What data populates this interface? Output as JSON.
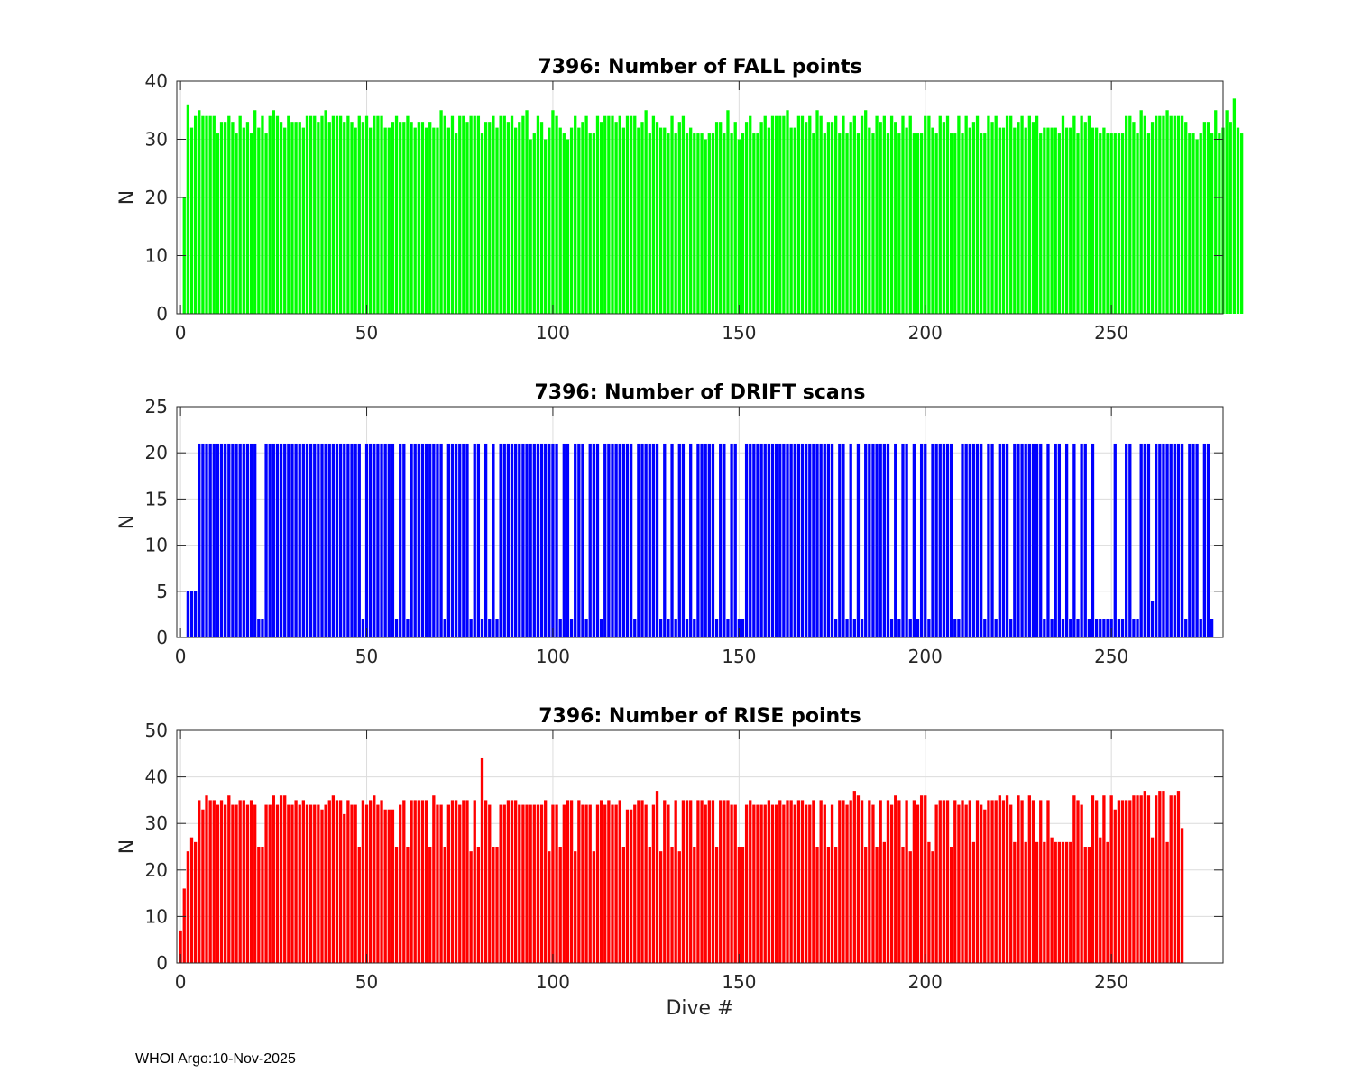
{
  "footer": "WHOI Argo:10-Nov-2025",
  "colors": {
    "fall": "#00ff00",
    "drift": "#0000ff",
    "rise": "#ff0000",
    "grid": "#dcdcdc",
    "axis": "#262626"
  },
  "chart_data": [
    {
      "type": "bar",
      "title": "7396: Number of FALL points",
      "xlabel": "",
      "ylabel": "N",
      "xlim": [
        -1,
        280
      ],
      "ylim": [
        0,
        40
      ],
      "xticks": [
        0,
        50,
        100,
        150,
        200,
        250
      ],
      "yticks": [
        0,
        10,
        20,
        30,
        40
      ],
      "x_start": 1,
      "values": [
        20,
        36,
        32,
        34,
        35,
        34,
        34,
        34,
        34,
        31,
        33,
        33,
        34,
        33,
        31,
        34,
        32,
        33,
        31,
        35,
        32,
        34,
        31,
        34,
        35,
        34,
        33,
        32,
        34,
        33,
        33,
        33,
        32,
        34,
        34,
        34,
        33,
        34,
        35,
        33,
        34,
        34,
        34,
        33,
        34,
        33,
        32,
        34,
        33,
        34,
        32,
        34,
        34,
        34,
        32,
        32,
        33,
        34,
        33,
        33,
        34,
        33,
        32,
        33,
        33,
        32,
        33,
        32,
        32,
        35,
        34,
        32,
        34,
        31,
        34,
        34,
        33,
        34,
        34,
        34,
        31,
        33,
        33,
        34,
        32,
        34,
        34,
        33,
        34,
        32,
        33,
        34,
        35,
        30,
        31,
        34,
        33,
        30,
        32,
        35,
        34,
        32,
        31,
        30,
        32,
        34,
        32,
        33,
        34,
        31,
        31,
        34,
        33,
        34,
        34,
        34,
        33,
        34,
        32,
        34,
        34,
        34,
        32,
        33,
        35,
        31,
        34,
        33,
        32,
        32,
        31,
        34,
        31,
        33,
        34,
        31,
        32,
        31,
        31,
        31,
        30,
        31,
        31,
        33,
        33,
        31,
        35,
        31,
        33,
        30,
        31,
        33,
        34,
        31,
        31,
        33,
        34,
        32,
        34,
        34,
        34,
        34,
        35,
        32,
        32,
        34,
        34,
        33,
        34,
        31,
        35,
        34,
        31,
        33,
        33,
        34,
        31,
        34,
        31,
        33,
        34,
        31,
        34,
        35,
        32,
        31,
        34,
        33,
        34,
        31,
        34,
        33,
        31,
        34,
        32,
        34,
        31,
        31,
        31,
        34,
        34,
        32,
        31,
        34,
        33,
        34,
        31,
        31,
        34,
        31,
        34,
        32,
        33,
        34,
        31,
        31,
        34,
        33,
        34,
        32,
        32,
        34,
        34,
        32,
        33,
        34,
        32,
        34,
        33,
        34,
        31,
        32,
        32,
        32,
        32,
        31,
        34,
        32,
        32,
        34,
        31,
        34,
        33,
        34,
        32,
        32,
        31,
        32,
        31,
        31,
        31,
        31,
        31,
        34,
        34,
        33,
        31,
        35,
        34,
        31,
        33,
        34,
        34,
        34,
        35,
        34,
        34,
        34,
        34,
        33,
        31,
        31,
        30,
        31,
        33,
        33,
        31,
        35,
        31,
        32,
        35,
        33,
        37,
        32,
        31
      ]
    },
    {
      "type": "bar",
      "title": "7396: Number of DRIFT scans",
      "xlabel": "",
      "ylabel": "N",
      "xlim": [
        -1,
        280
      ],
      "ylim": [
        0,
        25
      ],
      "xticks": [
        0,
        50,
        100,
        150,
        200,
        250
      ],
      "yticks": [
        0,
        5,
        10,
        15,
        20,
        25
      ],
      "x_start": 1,
      "values": [
        0,
        5,
        5,
        5,
        21,
        21,
        21,
        21,
        21,
        21,
        21,
        21,
        21,
        21,
        21,
        21,
        21,
        21,
        21,
        21,
        2,
        2,
        21,
        21,
        21,
        21,
        21,
        21,
        21,
        21,
        21,
        21,
        21,
        21,
        21,
        21,
        21,
        21,
        21,
        21,
        21,
        21,
        21,
        21,
        21,
        21,
        21,
        21,
        2,
        21,
        21,
        21,
        21,
        21,
        21,
        21,
        21,
        2,
        21,
        21,
        2,
        21,
        21,
        21,
        21,
        21,
        21,
        21,
        21,
        21,
        2,
        21,
        21,
        21,
        21,
        21,
        21,
        2,
        21,
        21,
        2,
        21,
        2,
        21,
        2,
        21,
        21,
        21,
        21,
        21,
        21,
        21,
        21,
        21,
        21,
        21,
        21,
        21,
        21,
        21,
        21,
        2,
        21,
        21,
        2,
        21,
        21,
        21,
        2,
        21,
        21,
        21,
        2,
        21,
        21,
        21,
        21,
        21,
        21,
        21,
        21,
        2,
        21,
        21,
        21,
        21,
        21,
        21,
        2,
        21,
        2,
        21,
        2,
        21,
        21,
        2,
        21,
        2,
        21,
        21,
        21,
        21,
        21,
        2,
        21,
        21,
        2,
        21,
        21,
        2,
        2,
        21,
        21,
        21,
        21,
        21,
        21,
        21,
        21,
        21,
        21,
        21,
        21,
        21,
        21,
        21,
        21,
        21,
        21,
        21,
        21,
        21,
        21,
        21,
        21,
        2,
        21,
        21,
        2,
        21,
        2,
        21,
        2,
        21,
        21,
        21,
        21,
        21,
        21,
        21,
        2,
        21,
        2,
        21,
        21,
        2,
        21,
        2,
        21,
        21,
        2,
        21,
        21,
        21,
        21,
        21,
        21,
        2,
        2,
        21,
        21,
        21,
        21,
        21,
        21,
        2,
        21,
        21,
        2,
        21,
        21,
        21,
        2,
        21,
        21,
        21,
        21,
        21,
        21,
        21,
        21,
        2,
        21,
        2,
        21,
        21,
        2,
        21,
        2,
        21,
        2,
        21,
        21,
        2,
        21,
        2,
        2,
        2,
        2,
        2,
        21,
        2,
        2,
        21,
        21,
        2,
        2,
        21,
        21,
        21,
        4,
        21,
        21,
        21,
        21,
        21,
        21,
        21,
        21,
        2,
        21,
        21,
        21,
        2,
        21,
        21,
        2
      ]
    },
    {
      "type": "bar",
      "title": "7396: Number of RISE points",
      "xlabel": "Dive #",
      "ylabel": "N",
      "xlim": [
        -1,
        280
      ],
      "ylim": [
        0,
        50
      ],
      "xticks": [
        0,
        50,
        100,
        150,
        200,
        250
      ],
      "yticks": [
        0,
        10,
        20,
        30,
        40,
        50
      ],
      "x_start": 0,
      "values": [
        7,
        16,
        24,
        27,
        26,
        35,
        33,
        36,
        35,
        35,
        34,
        35,
        34,
        36,
        34,
        34,
        35,
        35,
        34,
        35,
        34,
        25,
        25,
        34,
        34,
        36,
        34,
        36,
        36,
        34,
        34,
        35,
        34,
        35,
        34,
        34,
        34,
        34,
        33,
        34,
        35,
        36,
        35,
        35,
        32,
        35,
        34,
        34,
        25,
        35,
        34,
        35,
        36,
        34,
        35,
        33,
        33,
        33,
        25,
        34,
        35,
        25,
        35,
        35,
        35,
        35,
        35,
        25,
        36,
        34,
        34,
        25,
        34,
        35,
        35,
        34,
        35,
        35,
        24,
        35,
        25,
        44,
        35,
        34,
        25,
        25,
        34,
        34,
        35,
        35,
        35,
        34,
        34,
        34,
        34,
        34,
        34,
        34,
        35,
        24,
        34,
        34,
        25,
        34,
        35,
        35,
        24,
        35,
        34,
        34,
        34,
        24,
        34,
        35,
        34,
        35,
        34,
        34,
        35,
        25,
        33,
        33,
        34,
        35,
        35,
        34,
        25,
        34,
        37,
        24,
        35,
        34,
        25,
        35,
        24,
        35,
        35,
        35,
        25,
        35,
        35,
        34,
        35,
        35,
        25,
        35,
        35,
        35,
        34,
        34,
        25,
        25,
        34,
        35,
        34,
        34,
        34,
        34,
        35,
        34,
        34,
        35,
        34,
        35,
        35,
        34,
        35,
        35,
        34,
        34,
        35,
        25,
        35,
        34,
        25,
        34,
        25,
        35,
        35,
        34,
        35,
        37,
        36,
        35,
        25,
        35,
        34,
        25,
        35,
        26,
        35,
        34,
        36,
        35,
        25,
        35,
        24,
        35,
        34,
        36,
        36,
        26,
        24,
        34,
        35,
        35,
        35,
        25,
        35,
        34,
        35,
        34,
        35,
        26,
        35,
        34,
        33,
        35,
        35,
        35,
        36,
        35,
        36,
        34,
        26,
        36,
        35,
        26,
        36,
        35,
        26,
        35,
        26,
        35,
        27,
        26,
        26,
        26,
        26,
        26,
        36,
        35,
        34,
        25,
        25,
        36,
        35,
        27,
        36,
        26,
        36,
        33,
        35,
        35,
        35,
        35,
        36,
        36,
        36,
        37,
        36,
        27,
        36,
        37,
        37,
        26,
        36,
        36,
        37,
        29
      ]
    }
  ]
}
